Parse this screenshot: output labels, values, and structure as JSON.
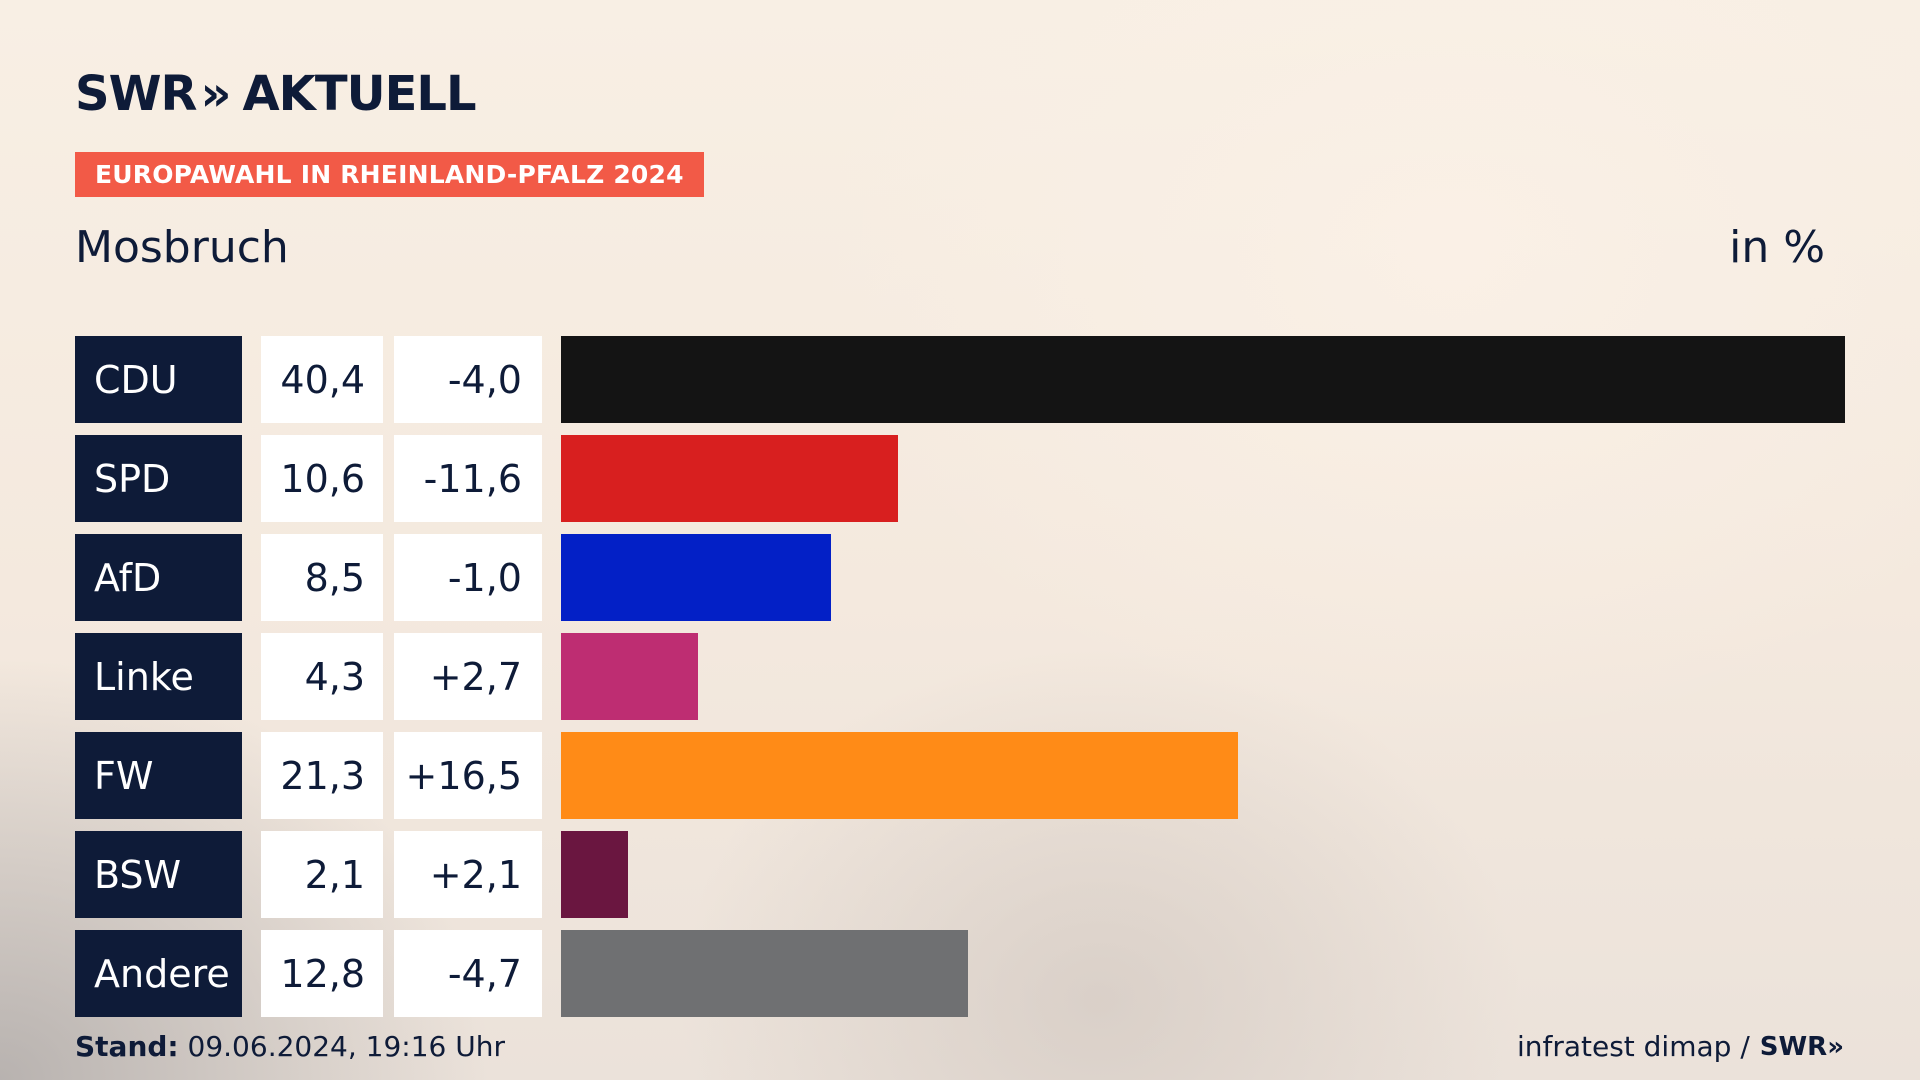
{
  "brand": {
    "logo_text": "SWR",
    "logo_chevrons": "»",
    "logo_suffix": "AKTUELL"
  },
  "header": {
    "tag": "EUROPAWAHL IN RHEINLAND-PFALZ 2024",
    "place": "Mosbruch",
    "unit": "in %"
  },
  "footer": {
    "stand_label": "Stand:",
    "stand_value": "09.06.2024, 19:16 Uhr",
    "source": "infratest dimap /",
    "source_logo": "SWR»"
  },
  "colors": {
    "navy": "#0e1b38",
    "tag_red": "#f25a47"
  },
  "chart_data": {
    "type": "bar",
    "orientation": "horizontal",
    "categories": [
      "CDU",
      "SPD",
      "AfD",
      "Linke",
      "FW",
      "BSW",
      "Andere"
    ],
    "values": [
      40.4,
      10.6,
      8.5,
      4.3,
      21.3,
      2.1,
      12.8
    ],
    "value_labels": [
      "40,4",
      "10,6",
      "8,5",
      "4,3",
      "21,3",
      "2,1",
      "12,8"
    ],
    "change_labels": [
      "-4,0",
      "-11,6",
      "-1,0",
      "+2,7",
      "+16,5",
      "+2,1",
      "-4,7"
    ],
    "changes": [
      -4.0,
      -11.6,
      -1.0,
      2.7,
      16.5,
      2.1,
      -4.7
    ],
    "bar_colors": [
      "#141414",
      "#d81f1f",
      "#0320c6",
      "#be2d72",
      "#ff8b17",
      "#6a1640",
      "#6f7072"
    ],
    "unit": "in %",
    "xlim": [
      0,
      40.4
    ]
  }
}
